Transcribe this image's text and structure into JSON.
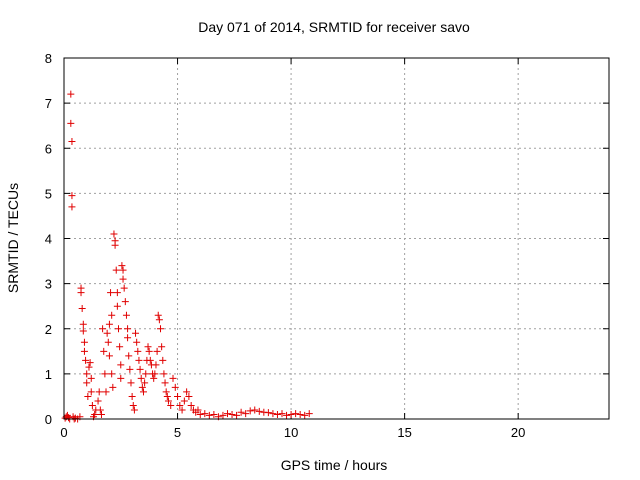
{
  "chart_data": {
    "type": "scatter",
    "title": "Day 071 of 2014, SRMTID for receiver savo",
    "xlabel": "GPS time / hours",
    "ylabel": "SRMTID / TECUs",
    "xlim": [
      0,
      24
    ],
    "ylim": [
      0,
      8
    ],
    "xticks": [
      0,
      5,
      10,
      15,
      20
    ],
    "yticks": [
      0,
      1,
      2,
      3,
      4,
      5,
      6,
      7,
      8
    ],
    "grid": true,
    "marker": "+",
    "series": [
      {
        "name": "savo",
        "color": "#e00000",
        "points": [
          [
            0.05,
            0.02
          ],
          [
            0.1,
            0.05
          ],
          [
            0.15,
            0.08
          ],
          [
            0.2,
            0.03
          ],
          [
            0.25,
            0.0
          ],
          [
            0.3,
            7.2
          ],
          [
            0.3,
            6.55
          ],
          [
            0.35,
            6.15
          ],
          [
            0.35,
            4.95
          ],
          [
            0.35,
            4.7
          ],
          [
            0.4,
            0.05
          ],
          [
            0.45,
            0.0
          ],
          [
            0.5,
            0.02
          ],
          [
            0.6,
            0.0
          ],
          [
            0.7,
            0.05
          ],
          [
            0.75,
            2.9
          ],
          [
            0.75,
            2.8
          ],
          [
            0.8,
            2.45
          ],
          [
            0.85,
            2.1
          ],
          [
            0.85,
            1.95
          ],
          [
            0.9,
            1.7
          ],
          [
            0.9,
            1.5
          ],
          [
            0.95,
            1.3
          ],
          [
            1.0,
            1.0
          ],
          [
            1.0,
            0.8
          ],
          [
            1.05,
            0.5
          ],
          [
            1.1,
            1.15
          ],
          [
            1.15,
            1.25
          ],
          [
            1.2,
            0.9
          ],
          [
            1.2,
            0.6
          ],
          [
            1.25,
            0.3
          ],
          [
            1.3,
            0.05
          ],
          [
            1.35,
            0.1
          ],
          [
            1.4,
            0.2
          ],
          [
            1.5,
            0.4
          ],
          [
            1.55,
            0.6
          ],
          [
            1.6,
            0.2
          ],
          [
            1.65,
            0.1
          ],
          [
            1.7,
            2.0
          ],
          [
            1.75,
            1.5
          ],
          [
            1.8,
            1.0
          ],
          [
            1.85,
            0.6
          ],
          [
            1.9,
            1.9
          ],
          [
            1.95,
            1.7
          ],
          [
            2.0,
            2.1
          ],
          [
            2.0,
            1.4
          ],
          [
            2.05,
            2.8
          ],
          [
            2.1,
            2.3
          ],
          [
            2.1,
            1.0
          ],
          [
            2.15,
            0.7
          ],
          [
            2.2,
            4.1
          ],
          [
            2.25,
            3.95
          ],
          [
            2.25,
            3.85
          ],
          [
            2.3,
            3.3
          ],
          [
            2.35,
            2.8
          ],
          [
            2.35,
            2.5
          ],
          [
            2.4,
            2.0
          ],
          [
            2.45,
            1.6
          ],
          [
            2.5,
            1.2
          ],
          [
            2.5,
            0.9
          ],
          [
            2.55,
            3.4
          ],
          [
            2.6,
            3.3
          ],
          [
            2.6,
            3.1
          ],
          [
            2.65,
            2.9
          ],
          [
            2.7,
            2.6
          ],
          [
            2.75,
            2.3
          ],
          [
            2.8,
            2.0
          ],
          [
            2.8,
            1.8
          ],
          [
            2.85,
            1.4
          ],
          [
            2.9,
            1.1
          ],
          [
            2.95,
            0.8
          ],
          [
            3.0,
            0.5
          ],
          [
            3.05,
            0.3
          ],
          [
            3.1,
            0.2
          ],
          [
            3.15,
            1.9
          ],
          [
            3.2,
            1.7
          ],
          [
            3.25,
            1.5
          ],
          [
            3.3,
            1.3
          ],
          [
            3.35,
            1.1
          ],
          [
            3.4,
            0.9
          ],
          [
            3.45,
            0.7
          ],
          [
            3.5,
            0.6
          ],
          [
            3.55,
            0.8
          ],
          [
            3.6,
            1.0
          ],
          [
            3.65,
            1.3
          ],
          [
            3.7,
            1.6
          ],
          [
            3.75,
            1.5
          ],
          [
            3.8,
            1.3
          ],
          [
            3.85,
            1.2
          ],
          [
            3.9,
            1.0
          ],
          [
            3.95,
            0.9
          ],
          [
            4.0,
            1.0
          ],
          [
            4.05,
            1.2
          ],
          [
            4.1,
            1.5
          ],
          [
            4.15,
            2.3
          ],
          [
            4.2,
            2.2
          ],
          [
            4.25,
            2.0
          ],
          [
            4.3,
            1.6
          ],
          [
            4.35,
            1.3
          ],
          [
            4.4,
            1.0
          ],
          [
            4.45,
            0.8
          ],
          [
            4.5,
            0.6
          ],
          [
            4.55,
            0.5
          ],
          [
            4.6,
            0.4
          ],
          [
            4.7,
            0.3
          ],
          [
            4.8,
            0.9
          ],
          [
            4.9,
            0.7
          ],
          [
            5.0,
            0.5
          ],
          [
            5.1,
            0.3
          ],
          [
            5.2,
            0.2
          ],
          [
            5.3,
            0.4
          ],
          [
            5.4,
            0.6
          ],
          [
            5.5,
            0.5
          ],
          [
            5.6,
            0.3
          ],
          [
            5.7,
            0.2
          ],
          [
            5.8,
            0.15
          ],
          [
            5.9,
            0.2
          ],
          [
            6.0,
            0.1
          ],
          [
            6.2,
            0.12
          ],
          [
            6.4,
            0.08
          ],
          [
            6.6,
            0.1
          ],
          [
            6.8,
            0.05
          ],
          [
            7.0,
            0.08
          ],
          [
            7.2,
            0.12
          ],
          [
            7.4,
            0.1
          ],
          [
            7.6,
            0.08
          ],
          [
            7.8,
            0.15
          ],
          [
            8.0,
            0.12
          ],
          [
            8.2,
            0.18
          ],
          [
            8.4,
            0.2
          ],
          [
            8.6,
            0.17
          ],
          [
            8.8,
            0.15
          ],
          [
            9.0,
            0.14
          ],
          [
            9.2,
            0.12
          ],
          [
            9.4,
            0.1
          ],
          [
            9.6,
            0.12
          ],
          [
            9.8,
            0.08
          ],
          [
            10.0,
            0.1
          ],
          [
            10.2,
            0.12
          ],
          [
            10.4,
            0.1
          ],
          [
            10.6,
            0.08
          ],
          [
            10.8,
            0.12
          ]
        ]
      }
    ]
  }
}
